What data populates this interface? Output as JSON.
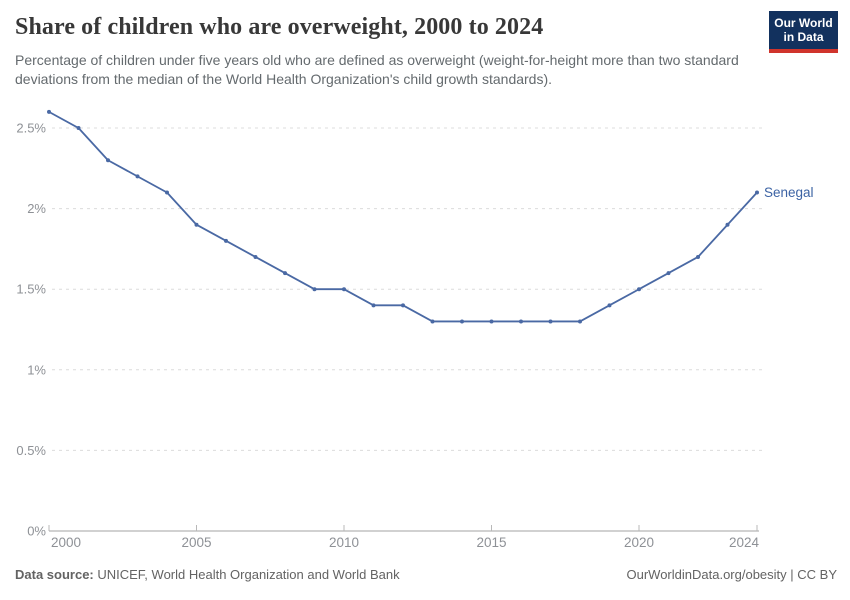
{
  "header": {
    "title": "Share of children who are overweight, 2000 to 2024",
    "subtitle": "Percentage of children under five years old who are defined as overweight (weight-for-height more than two standard deviations from the median of the World Health Organization's child growth standards).",
    "logo": {
      "line1": "Our World",
      "line2": "in Data",
      "bg_color": "#12315e",
      "accent_color": "#d0342c"
    }
  },
  "chart_data": {
    "type": "line",
    "title": "Share of children who are overweight, 2000 to 2024",
    "xlabel": "",
    "ylabel": "",
    "xlim": [
      2000,
      2024
    ],
    "ylim": [
      0,
      2.6
    ],
    "grid": "horizontal-dashed",
    "legend_position": "end-of-line-label",
    "x_ticks": [
      2000,
      2005,
      2010,
      2015,
      2020,
      2024
    ],
    "y_ticks": [
      0,
      0.5,
      1,
      1.5,
      2,
      2.5
    ],
    "y_tick_labels": [
      "0%",
      "0.5%",
      "1%",
      "1.5%",
      "2%",
      "2.5%"
    ],
    "series": [
      {
        "name": "Senegal",
        "color": "#4a69a4",
        "x": [
          2000,
          2001,
          2002,
          2003,
          2004,
          2005,
          2006,
          2007,
          2008,
          2009,
          2010,
          2011,
          2012,
          2013,
          2014,
          2015,
          2016,
          2017,
          2018,
          2019,
          2020,
          2021,
          2022,
          2023,
          2024
        ],
        "values": [
          2.6,
          2.5,
          2.3,
          2.2,
          2.1,
          1.9,
          1.8,
          1.7,
          1.6,
          1.5,
          1.5,
          1.4,
          1.4,
          1.3,
          1.3,
          1.3,
          1.3,
          1.3,
          1.3,
          1.4,
          1.5,
          1.6,
          1.7,
          1.9,
          2.1
        ]
      }
    ],
    "end_label": "Senegal",
    "colors": {
      "grid": "#dcdcdc",
      "axis": "#a3a3a3",
      "tick": "#b8b8b8",
      "tick_text": "#8e9196",
      "end_label": "#3c63a4"
    }
  },
  "footer": {
    "source_label": "Data source:",
    "source_text": " UNICEF, World Health Organization and World Bank",
    "credit": "OurWorldinData.org/obesity | CC BY"
  }
}
